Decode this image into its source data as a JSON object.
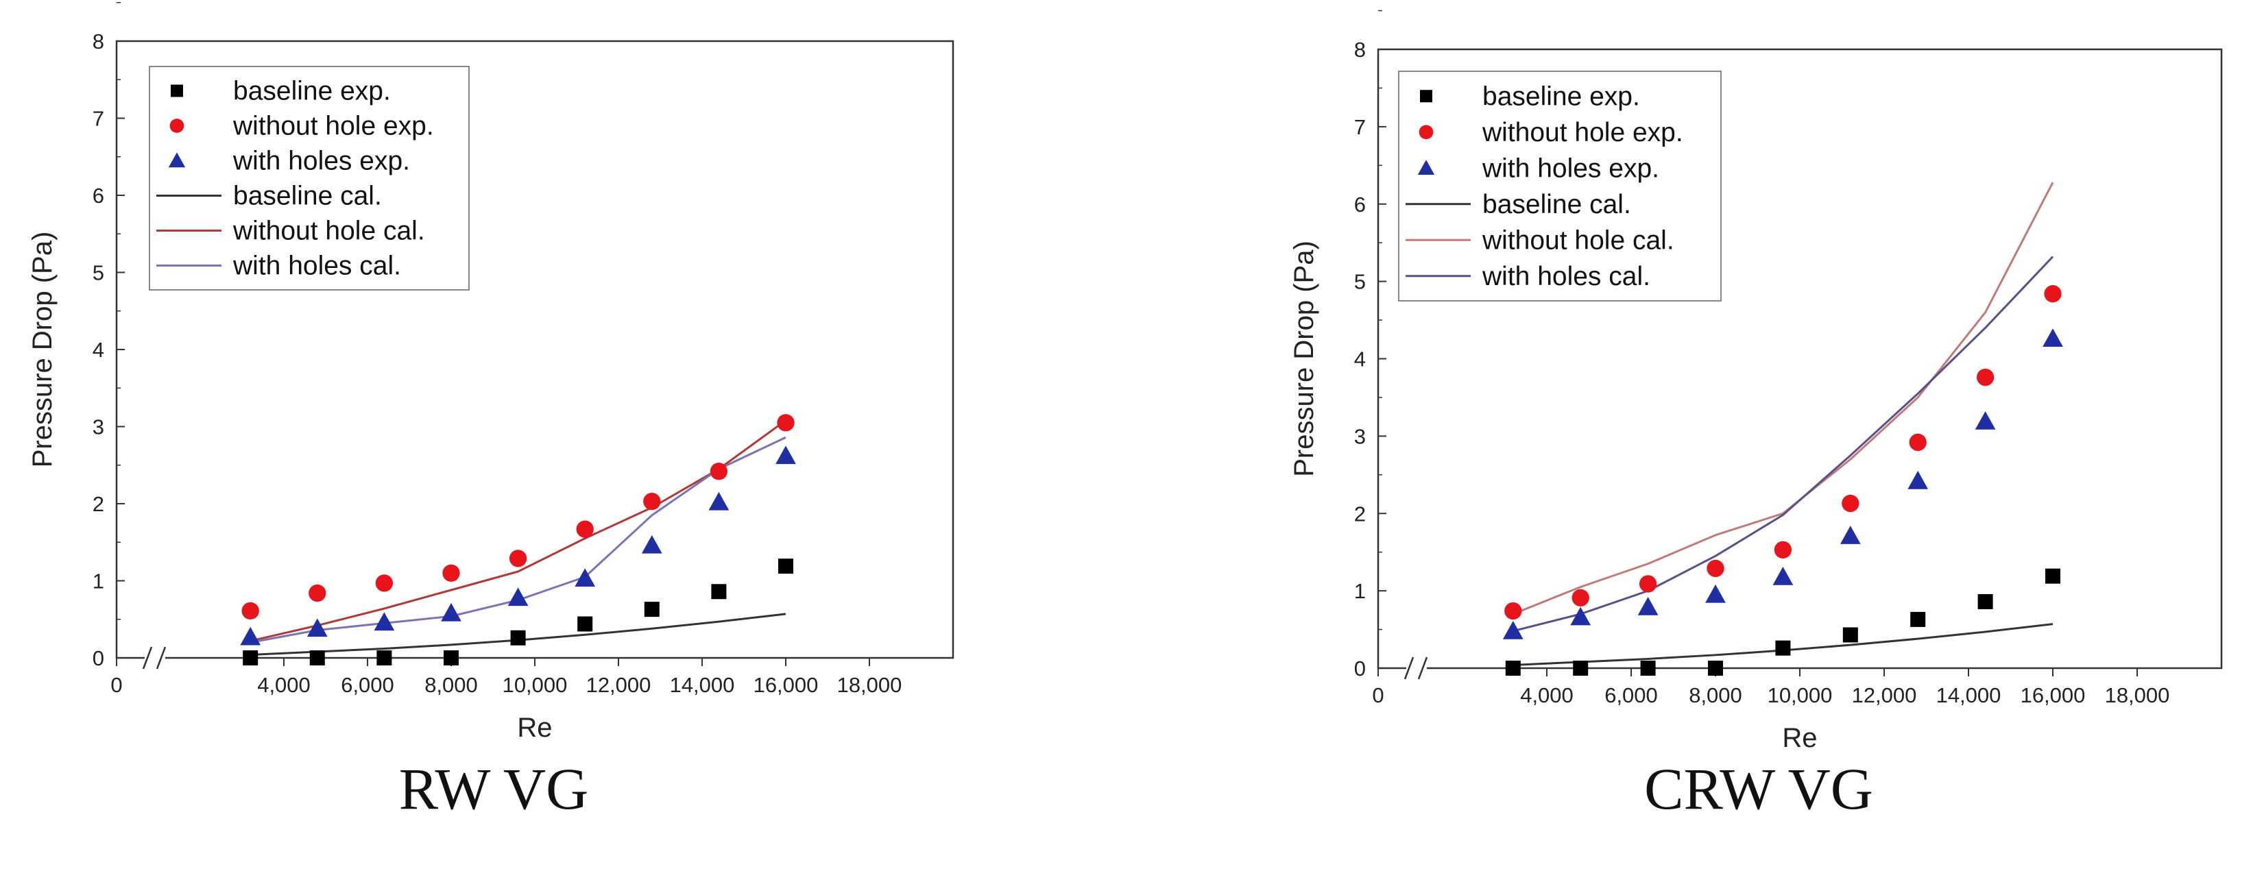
{
  "chart_data": [
    {
      "type": "scatter",
      "caption": "RW VG",
      "xlabel": "Re",
      "ylabel": "Pressure Drop (Pa)",
      "xlim": [
        0,
        20000
      ],
      "ylim": [
        0,
        8
      ],
      "x_ticks": [
        0,
        4000,
        6000,
        8000,
        10000,
        12000,
        14000,
        16000,
        18000
      ],
      "x_tick_labels": [
        "0",
        "4,000",
        "6,000",
        "8,000",
        "10,000",
        "12,000",
        "14,000",
        "16,000",
        "18,000"
      ],
      "y_ticks": [
        0,
        1,
        2,
        3,
        4,
        5,
        6,
        7,
        8
      ],
      "y_tick_labels": [
        "0",
        "1",
        "2",
        "3",
        "4",
        "5",
        "6",
        "7",
        "8"
      ],
      "axis_break": "//",
      "legend_position": "top-left",
      "series": [
        {
          "name": "baseline exp.",
          "kind": "points",
          "marker": "square",
          "color": "#000000",
          "x": [
            3200,
            4800,
            6400,
            8000,
            9600,
            11200,
            12800,
            14400,
            16000
          ],
          "y": [
            0.0,
            0.0,
            0.0,
            0.0,
            0.26,
            0.44,
            0.63,
            0.86,
            1.19
          ]
        },
        {
          "name": "without hole exp.",
          "kind": "points",
          "marker": "circle",
          "color": "#e8141b",
          "x": [
            3200,
            4800,
            6400,
            8000,
            9600,
            11200,
            12800,
            14400,
            16000
          ],
          "y": [
            0.61,
            0.84,
            0.97,
            1.1,
            1.29,
            1.67,
            2.03,
            2.42,
            3.05
          ]
        },
        {
          "name": "with holes exp.",
          "kind": "points",
          "marker": "triangle",
          "color": "#1f2ea3",
          "x": [
            3200,
            4800,
            6400,
            8000,
            9600,
            11200,
            12800,
            14400,
            16000
          ],
          "y": [
            0.27,
            0.38,
            0.46,
            0.58,
            0.78,
            1.03,
            1.46,
            2.02,
            2.62
          ]
        },
        {
          "name": "baseline cal.",
          "kind": "line",
          "color": "#333333",
          "x": [
            3200,
            4800,
            6400,
            8000,
            9600,
            11200,
            12800,
            14400,
            16000
          ],
          "y": [
            0.04,
            0.08,
            0.12,
            0.17,
            0.23,
            0.3,
            0.38,
            0.47,
            0.57
          ]
        },
        {
          "name": "without hole cal.",
          "kind": "line",
          "color": "#b03a3a",
          "x": [
            3200,
            4800,
            6400,
            8000,
            9600,
            11200,
            12800,
            14400,
            16000
          ],
          "y": [
            0.22,
            0.42,
            0.64,
            0.88,
            1.12,
            1.55,
            1.95,
            2.45,
            3.08
          ]
        },
        {
          "name": "with holes cal.",
          "kind": "line",
          "color": "#7a74b5",
          "x": [
            3200,
            4800,
            6400,
            8000,
            9600,
            11200,
            12800,
            14400,
            16000
          ],
          "y": [
            0.2,
            0.36,
            0.45,
            0.54,
            0.75,
            1.05,
            1.85,
            2.45,
            2.86
          ]
        }
      ]
    },
    {
      "type": "scatter",
      "caption": "CRW VG",
      "xlabel": "Re",
      "ylabel": "Pressure Drop (Pa)",
      "xlim": [
        0,
        20000
      ],
      "ylim": [
        0,
        8
      ],
      "x_ticks": [
        0,
        4000,
        6000,
        8000,
        10000,
        12000,
        14000,
        16000,
        18000
      ],
      "x_tick_labels": [
        "0",
        "4,000",
        "6,000",
        "8,000",
        "10,000",
        "12,000",
        "14,000",
        "16,000",
        "18,000"
      ],
      "y_ticks": [
        0,
        1,
        2,
        3,
        4,
        5,
        6,
        7,
        8
      ],
      "y_tick_labels": [
        "0",
        "1",
        "2",
        "3",
        "4",
        "5",
        "6",
        "7",
        "8"
      ],
      "axis_break": "//",
      "legend_position": "top-left",
      "series": [
        {
          "name": "baseline exp.",
          "kind": "points",
          "marker": "square",
          "color": "#000000",
          "x": [
            3200,
            4800,
            6400,
            8000,
            9600,
            11200,
            12800,
            14400,
            16000
          ],
          "y": [
            0.0,
            0.0,
            0.0,
            0.0,
            0.26,
            0.43,
            0.63,
            0.86,
            1.19
          ]
        },
        {
          "name": "without hole exp.",
          "kind": "points",
          "marker": "circle",
          "color": "#e8141b",
          "x": [
            3200,
            4800,
            6400,
            8000,
            9600,
            11200,
            12800,
            14400,
            16000
          ],
          "y": [
            0.74,
            0.91,
            1.09,
            1.29,
            1.53,
            2.13,
            2.92,
            3.76,
            4.84
          ]
        },
        {
          "name": "with holes exp.",
          "kind": "points",
          "marker": "triangle",
          "color": "#1f2ea3",
          "x": [
            3200,
            4800,
            6400,
            8000,
            9600,
            11200,
            12800,
            14400,
            16000
          ],
          "y": [
            0.48,
            0.66,
            0.79,
            0.95,
            1.18,
            1.71,
            2.42,
            3.19,
            4.26
          ]
        },
        {
          "name": "baseline cal.",
          "kind": "line",
          "color": "#333333",
          "x": [
            3200,
            4800,
            6400,
            8000,
            9600,
            11200,
            12800,
            14400,
            16000
          ],
          "y": [
            0.04,
            0.08,
            0.12,
            0.17,
            0.23,
            0.3,
            0.38,
            0.47,
            0.57
          ]
        },
        {
          "name": "without hole cal.",
          "kind": "line",
          "color": "#c07a7a",
          "x": [
            3200,
            4800,
            6400,
            8000,
            9600,
            11200,
            12800,
            14400,
            16000
          ],
          "y": [
            0.7,
            1.05,
            1.35,
            1.72,
            2.0,
            2.7,
            3.5,
            4.6,
            6.28
          ]
        },
        {
          "name": "with holes cal.",
          "kind": "line",
          "color": "#5a4f8a",
          "x": [
            3200,
            4800,
            6400,
            8000,
            9600,
            11200,
            12800,
            14400,
            16000
          ],
          "y": [
            0.48,
            0.7,
            1.0,
            1.45,
            1.98,
            2.75,
            3.55,
            4.4,
            5.32
          ]
        }
      ]
    }
  ]
}
